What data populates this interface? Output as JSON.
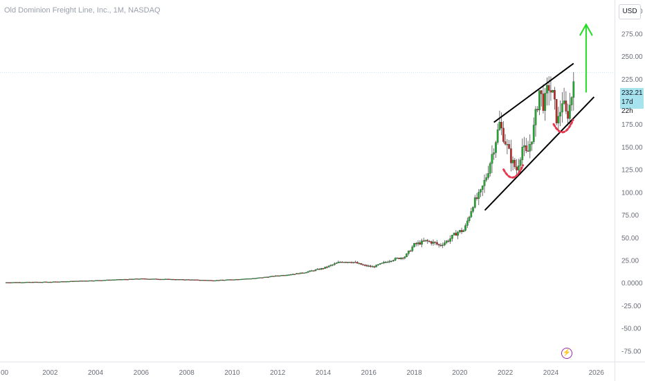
{
  "header": {
    "title": "Old Dominion Freight Line, Inc., 1M, NASDAQ",
    "currency": "USD"
  },
  "price_label": {
    "price": "232.21",
    "countdown": "17d 22h"
  },
  "icons": {
    "alert": "lightning-icon"
  },
  "colors": {
    "up": "#22ab2f",
    "down": "#c62828",
    "trendline": "#000000",
    "arrow": "#22dd22",
    "dots": "#e53950",
    "price_tag": "#a6e3ef"
  },
  "chart_data": {
    "type": "candlestick",
    "title": "Old Dominion Freight Line, Inc., 1M, NASDAQ",
    "y_ticks": [
      "300.00",
      "275.00",
      "250.00",
      "225.00",
      "200.00",
      "175.00",
      "150.00",
      "125.00",
      "100.00",
      "75.00",
      "50.00",
      "25.00",
      "0.0000",
      "-25.00",
      "-50.00",
      "-75.00"
    ],
    "x_ticks": [
      "00",
      "2002",
      "2004",
      "2006",
      "2008",
      "2010",
      "2012",
      "2014",
      "2016",
      "2018",
      "2020",
      "2022",
      "2024",
      "2026"
    ],
    "ylim": [
      -87,
      312
    ],
    "xlim": [
      1999.8,
      2026.8
    ],
    "last_price": 232.21,
    "anchors": [
      [
        2000.0,
        0.4
      ],
      [
        2002.0,
        0.9
      ],
      [
        2004.0,
        2.6
      ],
      [
        2006.0,
        4.5
      ],
      [
        2008.0,
        3.5
      ],
      [
        2009.2,
        2.6
      ],
      [
        2010.0,
        3.6
      ],
      [
        2011.0,
        5.0
      ],
      [
        2012.0,
        7.8
      ],
      [
        2013.0,
        10.5
      ],
      [
        2014.0,
        16.0
      ],
      [
        2014.8,
        23.5
      ],
      [
        2015.3,
        23.0
      ],
      [
        2015.8,
        19.0
      ],
      [
        2016.2,
        17.5
      ],
      [
        2016.9,
        24.5
      ],
      [
        2017.6,
        29.0
      ],
      [
        2018.0,
        42.0
      ],
      [
        2018.5,
        46.0
      ],
      [
        2018.9,
        44.0
      ],
      [
        2019.1,
        41.0
      ],
      [
        2019.5,
        47.0
      ],
      [
        2019.9,
        56.0
      ],
      [
        2020.2,
        58.0
      ],
      [
        2020.6,
        88.0
      ],
      [
        2020.9,
        98.0
      ],
      [
        2021.2,
        120.0
      ],
      [
        2021.5,
        150.0
      ],
      [
        2021.75,
        175.0
      ],
      [
        2021.95,
        160.0
      ],
      [
        2022.3,
        133.0
      ],
      [
        2022.5,
        125.0
      ],
      [
        2022.75,
        150.0
      ],
      [
        2022.95,
        140.0
      ],
      [
        2023.25,
        170.0
      ],
      [
        2023.5,
        212.0
      ],
      [
        2023.7,
        195.0
      ],
      [
        2023.9,
        218.0
      ],
      [
        2024.1,
        205.0
      ],
      [
        2024.3,
        175.0
      ],
      [
        2024.5,
        202.0
      ],
      [
        2024.7,
        182.0
      ],
      [
        2024.9,
        202.0
      ],
      [
        2025.0,
        232.0
      ]
    ],
    "annotations": {
      "upper_trendline": [
        [
          2021.5,
          177
        ],
        [
          2025.0,
          242
        ]
      ],
      "lower_trendline": [
        [
          2021.1,
          80
        ],
        [
          2025.9,
          205
        ]
      ],
      "arrow": [
        [
          2025.55,
          210
        ],
        [
          2025.55,
          285
        ]
      ],
      "bottom_arcs": [
        [
          2022.35,
          125
        ],
        [
          2024.55,
          175
        ]
      ]
    }
  }
}
